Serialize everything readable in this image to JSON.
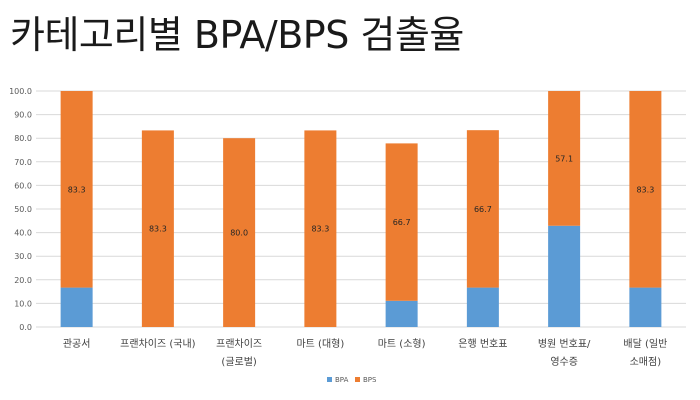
{
  "title": "카테고리별 BPA/BPS 검출율",
  "colors": {
    "bpa": "#5b9bd5",
    "bps": "#ed7d31",
    "grid": "#d9d9d9"
  },
  "chart_data": {
    "type": "bar",
    "stacked": true,
    "title": "카테고리별 BPA/BPS 검출율",
    "categories": [
      [
        "관공서"
      ],
      [
        "프랜차이즈 (국내)"
      ],
      [
        "프랜차이즈",
        "(글로벌)"
      ],
      [
        "마트 (대형)"
      ],
      [
        "마트 (소형)"
      ],
      [
        "은행 번호표"
      ],
      [
        "병원 번호표/",
        "영수증"
      ],
      [
        "배달 (일반",
        "소매점)"
      ]
    ],
    "series": [
      {
        "name": "BPA",
        "values": [
          16.7,
          0,
          0,
          0,
          11.1,
          16.7,
          42.9,
          16.7
        ],
        "labels": [
          "",
          "",
          "",
          "",
          "",
          "",
          "",
          ""
        ]
      },
      {
        "name": "BPS",
        "values": [
          83.3,
          83.3,
          80.0,
          83.3,
          66.7,
          66.7,
          57.1,
          83.3
        ],
        "labels": [
          "83.3",
          "83.3",
          "80.0",
          "83.3",
          "66.7",
          "66.7",
          "57.1",
          "83.3"
        ]
      }
    ],
    "ylim": [
      0,
      100
    ],
    "yticks": [
      "0.0",
      "10.0",
      "20.0",
      "30.0",
      "40.0",
      "50.0",
      "60.0",
      "70.0",
      "80.0",
      "90.0",
      "100.0"
    ],
    "grid": true,
    "legend": "bottom"
  }
}
